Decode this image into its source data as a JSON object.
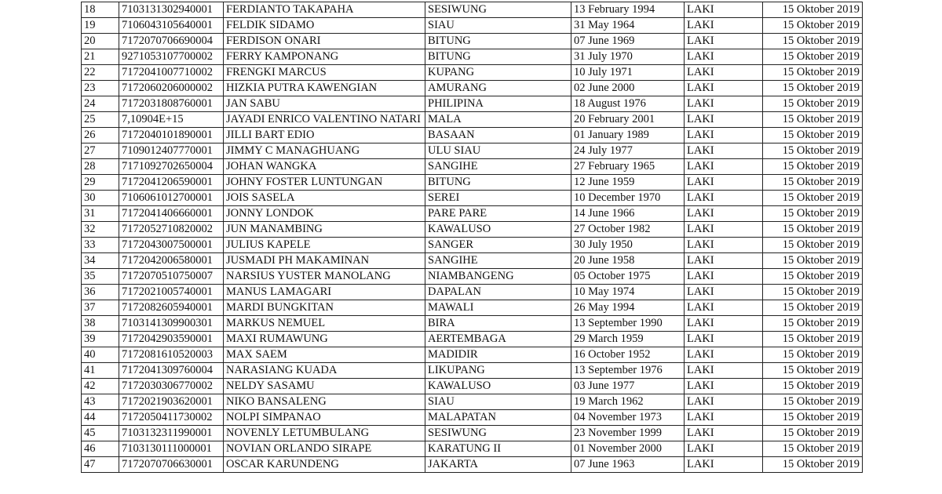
{
  "table": {
    "rows": [
      [
        "18",
        "7103131302940001",
        "FERDIANTO TAKAPAHA",
        "SESIWUNG",
        "13 February 1994",
        "LAKI",
        "15 Oktober 2019"
      ],
      [
        "19",
        "7106043105640001",
        "FELDIK SIDAMO",
        "SIAU",
        "31 May 1964",
        "LAKI",
        "15 Oktober 2019"
      ],
      [
        "20",
        "7172070706690004",
        "FERDISON ONARI",
        "BITUNG",
        "07 June 1969",
        "LAKI",
        "15 Oktober 2019"
      ],
      [
        "21",
        "9271053107700002",
        "FERRY KAMPONANG",
        "BITUNG",
        "31 July 1970",
        "LAKI",
        "15 Oktober 2019"
      ],
      [
        "22",
        "7172041007710002",
        "FRENGKI MARCUS",
        "KUPANG",
        "10 July 1971",
        "LAKI",
        "15 Oktober 2019"
      ],
      [
        "23",
        "7172060206000002",
        "HIZKIA PUTRA KAWENGIAN",
        "AMURANG",
        "02 June 2000",
        "LAKI",
        "15 Oktober 2019"
      ],
      [
        "24",
        "7172031808760001",
        "JAN SABU",
        "PHILIPINA",
        "18 August 1976",
        "LAKI",
        "15 Oktober 2019"
      ],
      [
        "25",
        "7,10904E+15",
        "JAYADI ENRICO VALENTINO NATARI",
        "MALA",
        "20 February 2001",
        "LAKI",
        "15 Oktober 2019"
      ],
      [
        "26",
        "7172040101890001",
        "JILLI BART EDIO",
        "BASAAN",
        "01 January 1989",
        "LAKI",
        "15 Oktober 2019"
      ],
      [
        "27",
        "7109012407770001",
        "JIMMY C MANAGHUANG",
        "ULU SIAU",
        "24 July 1977",
        "LAKI",
        "15 Oktober 2019"
      ],
      [
        "28",
        "7171092702650004",
        "JOHAN WANGKA",
        "SANGIHE",
        "27 February 1965",
        "LAKI",
        "15 Oktober 2019"
      ],
      [
        "29",
        "7172041206590001",
        "JOHNY FOSTER LUNTUNGAN",
        "BITUNG",
        "12 June 1959",
        "LAKI",
        "15 Oktober 2019"
      ],
      [
        "30",
        "7106061012700001",
        "JOIS SASELA",
        "SEREI",
        "10 December 1970",
        "LAKI",
        "15 Oktober 2019"
      ],
      [
        "31",
        "7172041406660001",
        "JONNY LONDOK",
        "PARE PARE",
        "14 June 1966",
        "LAKI",
        "15 Oktober 2019"
      ],
      [
        "32",
        "7172052710820002",
        "JUN MANAMBING",
        "KAWALUSO",
        "27 October 1982",
        "LAKI",
        "15 Oktober 2019"
      ],
      [
        "33",
        "7172043007500001",
        "JULIUS KAPELE",
        "SANGER",
        "30 July 1950",
        "LAKI",
        "15 Oktober 2019"
      ],
      [
        "34",
        "7172042006580001",
        "JUSMADI PH MAKAMINAN",
        "SANGIHE",
        "20 June 1958",
        "LAKI",
        "15 Oktober 2019"
      ],
      [
        "35",
        "7172070510750007",
        "NARSIUS YUSTER MANOLANG",
        "NIAMBANGENG",
        "05 October 1975",
        "LAKI",
        "15 Oktober 2019"
      ],
      [
        "36",
        "7172021005740001",
        "MANUS LAMAGARI",
        "DAPALAN",
        "10 May 1974",
        "LAKI",
        "15 Oktober 2019"
      ],
      [
        "37",
        "7172082605940001",
        "MARDI BUNGKITAN",
        "MAWALI",
        "26 May 1994",
        "LAKI",
        "15 Oktober 2019"
      ],
      [
        "38",
        "7103141309900301",
        "MARKUS NEMUEL",
        "BIRA",
        "13 September 1990",
        "LAKI",
        "15 Oktober 2019"
      ],
      [
        "39",
        "7172042903590001",
        "MAXI RUMAWUNG",
        "AERTEMBAGA",
        "29 March 1959",
        "LAKI",
        "15 Oktober 2019"
      ],
      [
        "40",
        "7172081610520003",
        "MAX SAEM",
        "MADIDIR",
        "16 October 1952",
        "LAKI",
        "15 Oktober 2019"
      ],
      [
        "41",
        "7172041309760004",
        "NARASIANG KUADA",
        "LIKUPANG",
        "13 September 1976",
        "LAKI",
        "15 Oktober 2019"
      ],
      [
        "42",
        "7172030306770002",
        "NELDY SASAMU",
        "KAWALUSO",
        "03 June 1977",
        "LAKI",
        "15 Oktober 2019"
      ],
      [
        "43",
        "7172021903620001",
        "NIKO BANSALENG",
        "SIAU",
        "19 March 1962",
        "LAKI",
        "15 Oktober 2019"
      ],
      [
        "44",
        "7172050411730002",
        "NOLPI SIMPANAO",
        "MALAPATAN",
        "04 November 1973",
        "LAKI",
        "15 Oktober 2019"
      ],
      [
        "45",
        "7103132311990001",
        "NOVENLY LETUMBULANG",
        "SESIWUNG",
        "23 November 1999",
        "LAKI",
        "15 Oktober 2019"
      ],
      [
        "46",
        "7103130111000001",
        "NOVIAN ORLANDO SIRAPE",
        "KARATUNG II",
        "01 November 2000",
        "LAKI",
        "15 Oktober 2019"
      ],
      [
        "47",
        "7172070706630001",
        "OSCAR KARUNDENG",
        "JAKARTA",
        "07 June 1963",
        "LAKI",
        "15 Oktober 2019"
      ]
    ]
  }
}
